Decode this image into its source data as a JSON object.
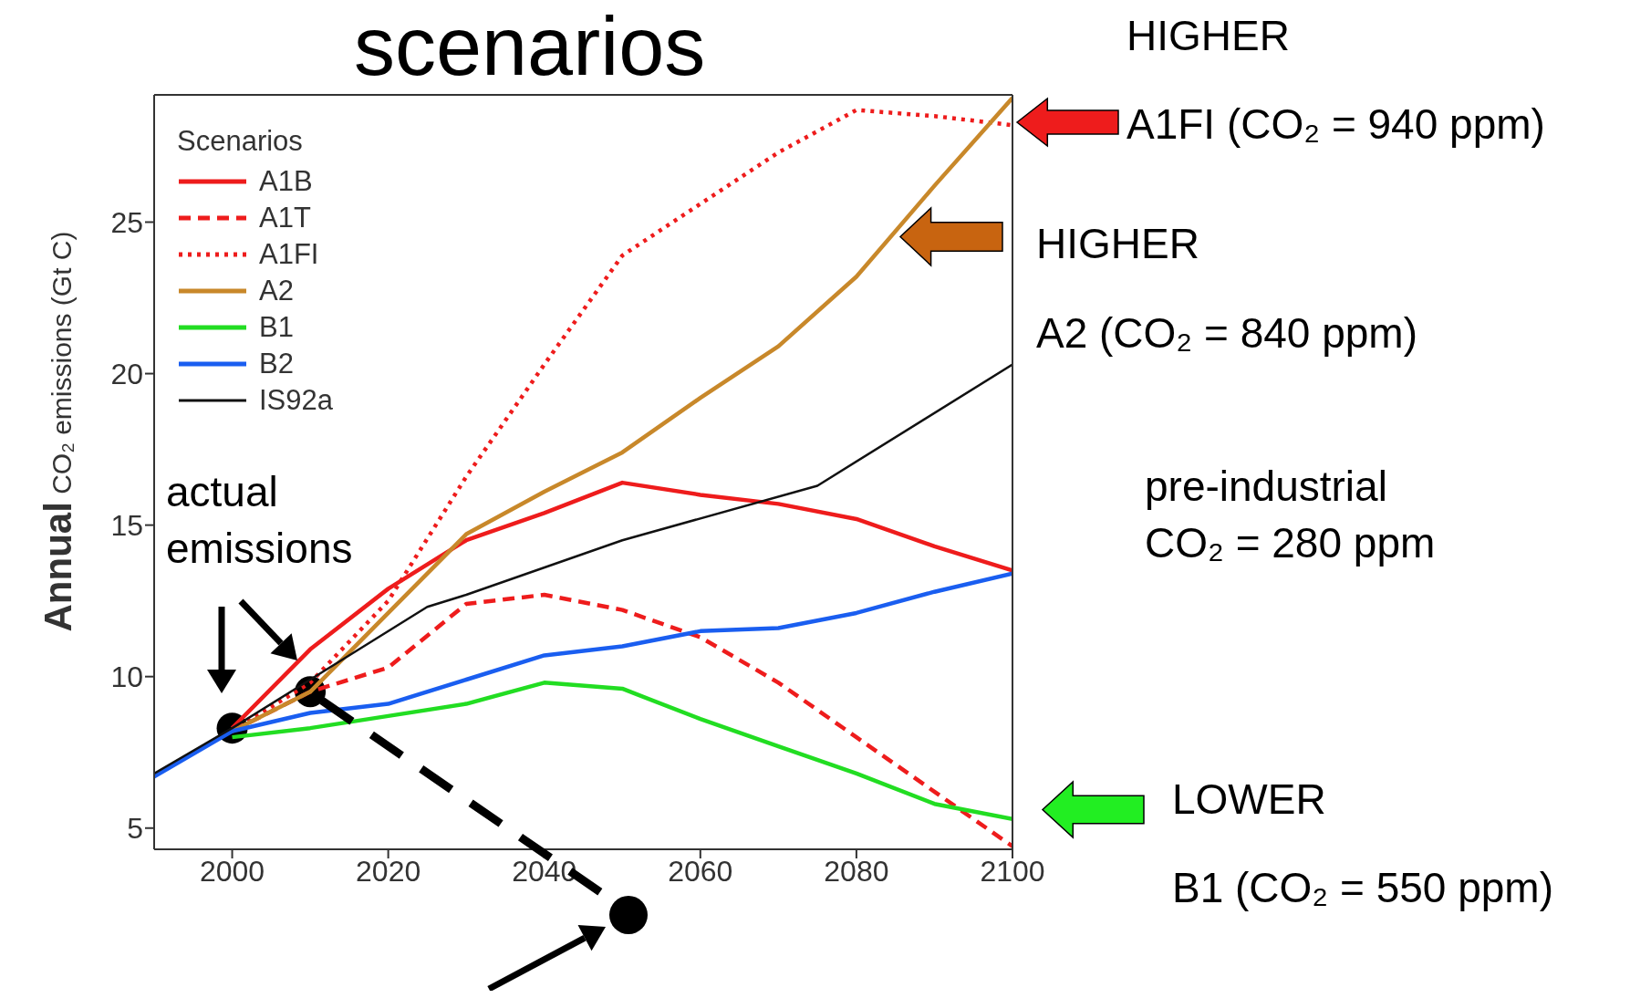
{
  "chart_data": {
    "type": "line",
    "title": "scenarios",
    "ylabel": "Annual CO₂ emissions (Gt C)",
    "legend_title": "Scenarios",
    "xlim": [
      1990,
      2100
    ],
    "xticks": [
      2000,
      2020,
      2040,
      2060,
      2080,
      2100
    ],
    "ylim": [
      4.3,
      29.2
    ],
    "yticks": [
      5,
      10,
      15,
      20,
      25
    ],
    "legend": "top left",
    "marker": "none",
    "series": [
      {
        "name": "A1B",
        "color": "#ee1c1c",
        "line_style": "solid",
        "x": [
          2000,
          2010,
          2020,
          2030,
          2040,
          2050,
          2060,
          2070,
          2080,
          2090,
          2100
        ],
        "values": [
          8.3,
          10.9,
          12.9,
          14.5,
          15.4,
          16.4,
          16.0,
          15.7,
          15.2,
          14.3,
          13.5
        ]
      },
      {
        "name": "A1T",
        "color": "#ee1c1c",
        "line_style": "dashed",
        "x": [
          2000,
          2010,
          2020,
          2030,
          2040,
          2050,
          2060,
          2070,
          2080,
          2090,
          2100
        ],
        "values": [
          8.2,
          9.5,
          10.3,
          12.4,
          12.7,
          12.2,
          11.3,
          9.8,
          8.0,
          6.2,
          4.4
        ]
      },
      {
        "name": "A1FI",
        "color": "#ee1c1c",
        "line_style": "dotted",
        "x": [
          2000,
          2010,
          2020,
          2030,
          2040,
          2050,
          2060,
          2070,
          2080,
          2090,
          2100
        ],
        "values": [
          8.2,
          9.8,
          12.5,
          16.6,
          20.3,
          23.9,
          25.6,
          27.3,
          28.7,
          28.5,
          28.2
        ]
      },
      {
        "name": "A2",
        "color": "#c8882a",
        "line_style": "solid",
        "x": [
          2000,
          2010,
          2020,
          2030,
          2040,
          2050,
          2060,
          2070,
          2080,
          2090,
          2100
        ],
        "values": [
          8.2,
          9.5,
          12.1,
          14.7,
          16.1,
          17.4,
          19.2,
          20.9,
          23.2,
          26.2,
          29.1
        ]
      },
      {
        "name": "B1",
        "color": "#22dd22",
        "line_style": "solid",
        "x": [
          2000,
          2010,
          2020,
          2030,
          2040,
          2050,
          2060,
          2070,
          2080,
          2090,
          2100
        ],
        "values": [
          8.0,
          8.3,
          8.7,
          9.1,
          9.8,
          9.6,
          8.6,
          7.7,
          6.8,
          5.8,
          5.3
        ]
      },
      {
        "name": "B2",
        "color": "#1a5ef0",
        "line_style": "solid",
        "x": [
          1990,
          2000,
          2010,
          2020,
          2030,
          2040,
          2050,
          2060,
          2070,
          2080,
          2090,
          2100
        ],
        "values": [
          6.7,
          8.2,
          8.8,
          9.1,
          9.9,
          10.7,
          11.0,
          11.5,
          11.6,
          12.1,
          12.8,
          13.4
        ]
      },
      {
        "name": "IS92a",
        "color": "#111111",
        "line_style": "solid",
        "x": [
          1990,
          2000,
          2010,
          2025,
          2030,
          2050,
          2075,
          2100
        ],
        "values": [
          6.8,
          8.3,
          9.9,
          12.3,
          12.7,
          14.5,
          16.3,
          20.3
        ]
      },
      {
        "type": "scatter",
        "color": "#000000",
        "marker": "circle",
        "x": [
          2000,
          2010
        ],
        "values": [
          8.3,
          9.5
        ]
      }
    ],
    "annotations": [
      "HIGHER",
      "A1FI (CO₂ = 940 ppm)",
      "HIGHER",
      "A2 (CO₂ = 840 ppm)",
      "pre-industrial\nCO₂ = 280 ppm",
      "LOWER",
      "B1 (CO₂ = 550 ppm)",
      "actual\nemissions"
    ]
  }
}
